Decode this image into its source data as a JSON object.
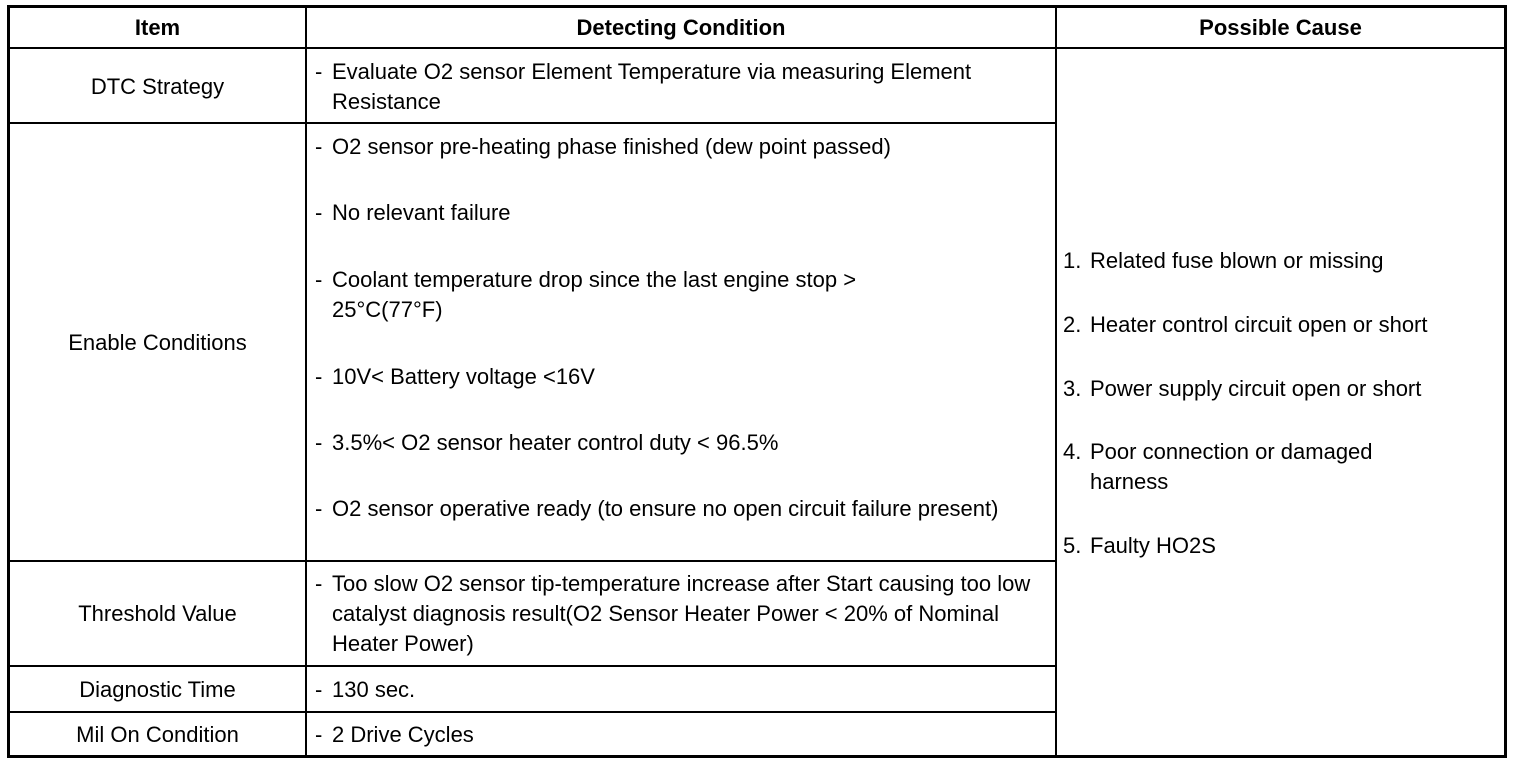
{
  "headers": {
    "item": "Item",
    "condition": "Detecting Condition",
    "cause": "Possible Cause"
  },
  "rows": [
    {
      "item": "DTC Strategy",
      "conditions": [
        "Evaluate O2 sensor Element Temperature via measuring Element Resistance"
      ]
    },
    {
      "item": "Enable Conditions",
      "conditions": [
        "O2 sensor pre-heating phase finished (dew point passed)",
        "No relevant failure",
        "Coolant temperature drop since the last engine stop > 25°C(77°F)",
        "10V< Battery voltage <16V",
        "3.5%< O2 sensor heater control duty < 96.5%",
        "O2 sensor operative ready (to ensure no open circuit failure present)"
      ]
    },
    {
      "item": "Threshold Value",
      "conditions": [
        "Too slow O2 sensor tip-temperature increase after Start causing too low catalyst diagnosis result(O2 Sensor Heater Power < 20% of Nominal Heater Power)"
      ]
    },
    {
      "item": "Diagnostic Time",
      "conditions": [
        "130 sec."
      ]
    },
    {
      "item": "Mil On Condition",
      "conditions": [
        "2 Drive Cycles"
      ]
    }
  ],
  "bullet": "-",
  "possible_causes": [
    {
      "num": "1.",
      "text": "Related fuse blown or missing"
    },
    {
      "num": "2.",
      "text": "Heater control circuit open or short"
    },
    {
      "num": "3.",
      "text": "Power supply circuit open or short"
    },
    {
      "num": "4.",
      "text": "Poor connection or damaged harness"
    },
    {
      "num": "5.",
      "text": "Faulty HO2S"
    }
  ]
}
